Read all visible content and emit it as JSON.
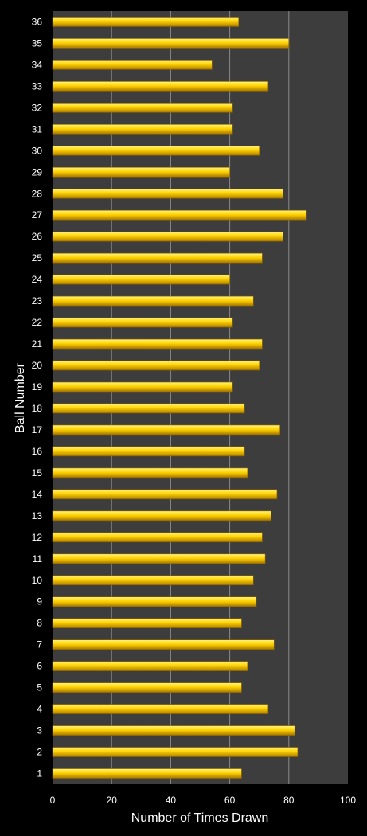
{
  "chart_data": {
    "type": "bar",
    "orientation": "horizontal",
    "title": "",
    "xlabel": "Number of Times Drawn",
    "ylabel": "Ball Number",
    "xlim": [
      0,
      100
    ],
    "x_ticks": [
      "0",
      "20",
      "40",
      "60",
      "80",
      "100"
    ],
    "grid": true,
    "legend": "none",
    "categories": [
      "1",
      "2",
      "3",
      "4",
      "5",
      "6",
      "7",
      "8",
      "9",
      "10",
      "11",
      "12",
      "13",
      "14",
      "15",
      "16",
      "17",
      "18",
      "19",
      "20",
      "21",
      "22",
      "23",
      "24",
      "25",
      "26",
      "27",
      "28",
      "29",
      "30",
      "31",
      "32",
      "33",
      "34",
      "35",
      "36"
    ],
    "values": [
      64,
      83,
      82,
      73,
      64,
      66,
      75,
      64,
      69,
      68,
      72,
      71,
      74,
      76,
      66,
      65,
      77,
      65,
      61,
      70,
      71,
      61,
      68,
      60,
      71,
      78,
      86,
      78,
      60,
      70,
      61,
      61,
      73,
      54,
      80,
      63
    ],
    "colors": {
      "background": "#000000",
      "plot_area": "#3d3d3d",
      "gridline": "#8a8a8a",
      "bar_top": "#fff27a",
      "bar_mid": "#ffd200",
      "bar_bottom": "#a87800",
      "text": "#ffffff"
    }
  }
}
